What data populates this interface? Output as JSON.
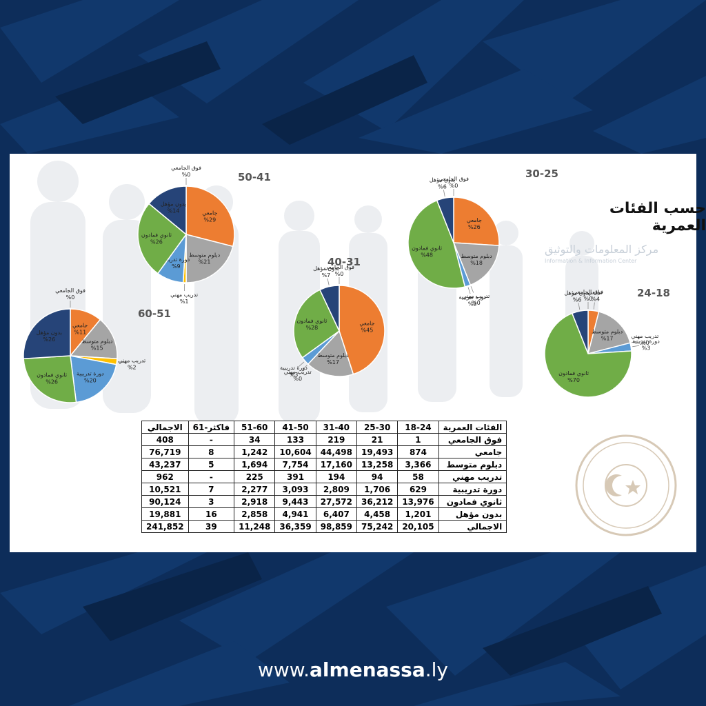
{
  "page": {
    "heading": "حسب الفئات العمرية",
    "watermark_text": "مركز المعلومات والتوثيق",
    "watermark_sub": "Information & Information Center",
    "footer": {
      "prefix": "www.",
      "brand": "almenassa",
      "suffix": ".ly"
    },
    "colors": {
      "background": "#0d2d5a",
      "panel": "#ffffff"
    }
  },
  "chart_data": [
    {
      "type": "pie",
      "title": "50-41",
      "slices": [
        {
          "label": "فوق الجامعي",
          "value": 0,
          "text": "%0",
          "color": "#f2c300"
        },
        {
          "label": "جامعي",
          "value": 29,
          "text": "%29",
          "color": "#ed7d31"
        },
        {
          "label": "دبلوم متوسط",
          "value": 21,
          "text": "%21",
          "color": "#a5a5a5"
        },
        {
          "label": "تدريب مهني",
          "value": 1,
          "text": "%1",
          "color": "#ffc000"
        },
        {
          "label": "دورة تدريبية",
          "value": 9,
          "text": "%9",
          "color": "#5b9bd5"
        },
        {
          "label": "ثانوي فمادون",
          "value": 26,
          "text": "%26",
          "color": "#70ad47"
        },
        {
          "label": "بدون مؤهل",
          "value": 14,
          "text": "%14",
          "color": "#264478"
        }
      ]
    },
    {
      "type": "pie",
      "title": "30-25",
      "slices": [
        {
          "label": "فوق الجامعي",
          "value": 0,
          "text": "%0",
          "color": "#f2c300"
        },
        {
          "label": "جامعي",
          "value": 26,
          "text": "%26",
          "color": "#ed7d31"
        },
        {
          "label": "دبلوم متوسط",
          "value": 18,
          "text": "%18",
          "color": "#a5a5a5"
        },
        {
          "label": "تدريب مهني",
          "value": 0,
          "text": "%0",
          "color": "#ffc000"
        },
        {
          "label": "دورة تدريبية",
          "value": 2,
          "text": "%2",
          "color": "#5b9bd5"
        },
        {
          "label": "ثانوي فمادون",
          "value": 48,
          "text": "%48",
          "color": "#70ad47"
        },
        {
          "label": "بدون مؤهل",
          "value": 6,
          "text": "%6",
          "color": "#264478"
        }
      ]
    },
    {
      "type": "pie",
      "title": "40-31",
      "slices": [
        {
          "label": "فوق الجامعي",
          "value": 0,
          "text": "%0",
          "color": "#f2c300"
        },
        {
          "label": "جامعي",
          "value": 45,
          "text": "%45",
          "color": "#ed7d31"
        },
        {
          "label": "دبلوم متوسط",
          "value": 17,
          "text": "%17",
          "color": "#a5a5a5"
        },
        {
          "label": "تدريب مهني",
          "value": 0,
          "text": "%0",
          "color": "#ffc000"
        },
        {
          "label": "دورة تدريبية",
          "value": 3,
          "text": "%3",
          "color": "#5b9bd5"
        },
        {
          "label": "ثانوي فمادون",
          "value": 28,
          "text": "%28",
          "color": "#70ad47"
        },
        {
          "label": "بدون مؤهل",
          "value": 7,
          "text": "%7",
          "color": "#264478"
        }
      ]
    },
    {
      "type": "pie",
      "title": "60-51",
      "slices": [
        {
          "label": "فوق الجامعي",
          "value": 0,
          "text": "%0",
          "color": "#f2c300"
        },
        {
          "label": "جامعي",
          "value": 11,
          "text": "%11",
          "color": "#ed7d31"
        },
        {
          "label": "دبلوم متوسط",
          "value": 15,
          "text": "%15",
          "color": "#a5a5a5"
        },
        {
          "label": "تدريب مهني",
          "value": 2,
          "text": "%2",
          "color": "#ffc000"
        },
        {
          "label": "دورة تدريبية",
          "value": 20,
          "text": "%20",
          "color": "#5b9bd5"
        },
        {
          "label": "ثانوي فمادون",
          "value": 26,
          "text": "%26",
          "color": "#70ad47"
        },
        {
          "label": "بدون مؤهل",
          "value": 26,
          "text": "%26",
          "color": "#264478"
        }
      ]
    },
    {
      "type": "pie",
      "title": "24-18",
      "slices": [
        {
          "label": "فوق الجامعي",
          "value": 0,
          "text": "%0",
          "color": "#f2c300"
        },
        {
          "label": "جامعي",
          "value": 4,
          "text": "%4",
          "color": "#ed7d31"
        },
        {
          "label": "دبلوم متوسط",
          "value": 17,
          "text": "%17",
          "color": "#a5a5a5"
        },
        {
          "label": "تدريب مهني",
          "value": 0,
          "text": "%0",
          "color": "#ffc000"
        },
        {
          "label": "دورة تدريبية",
          "value": 3,
          "text": "%3",
          "color": "#5b9bd5"
        },
        {
          "label": "ثانوي فمادون",
          "value": 70,
          "text": "%70",
          "color": "#70ad47"
        },
        {
          "label": "بدون مؤهل",
          "value": 6,
          "text": "%6",
          "color": "#264478"
        }
      ]
    },
    {
      "type": "table",
      "header": [
        "الاجمالي",
        "61-فاكثر",
        "51-60",
        "41-50",
        "31-40",
        "25-30",
        "18-24",
        "الفئات العمرية"
      ],
      "rows": [
        [
          "408",
          "-",
          "34",
          "133",
          "219",
          "21",
          "1",
          "فوق الجامعي"
        ],
        [
          "76,719",
          "8",
          "1,242",
          "10,604",
          "44,498",
          "19,493",
          "874",
          "جامعي"
        ],
        [
          "43,237",
          "5",
          "1,694",
          "7,754",
          "17,160",
          "13,258",
          "3,366",
          "دبلوم متوسط"
        ],
        [
          "962",
          "-",
          "225",
          "391",
          "194",
          "94",
          "58",
          "تدريب مهني"
        ],
        [
          "10,521",
          "7",
          "2,277",
          "3,093",
          "2,809",
          "1,706",
          "629",
          "دورة تدريبية"
        ],
        [
          "90,124",
          "3",
          "2,918",
          "9,443",
          "27,572",
          "36,212",
          "13,976",
          "ثانوي فمادون"
        ],
        [
          "19,881",
          "16",
          "2,858",
          "4,941",
          "6,407",
          "4,458",
          "1,201",
          "بدون مؤهل"
        ],
        [
          "241,852",
          "39",
          "11,248",
          "36,359",
          "98,859",
          "75,242",
          "20,105",
          "الاجمالي"
        ]
      ]
    }
  ]
}
